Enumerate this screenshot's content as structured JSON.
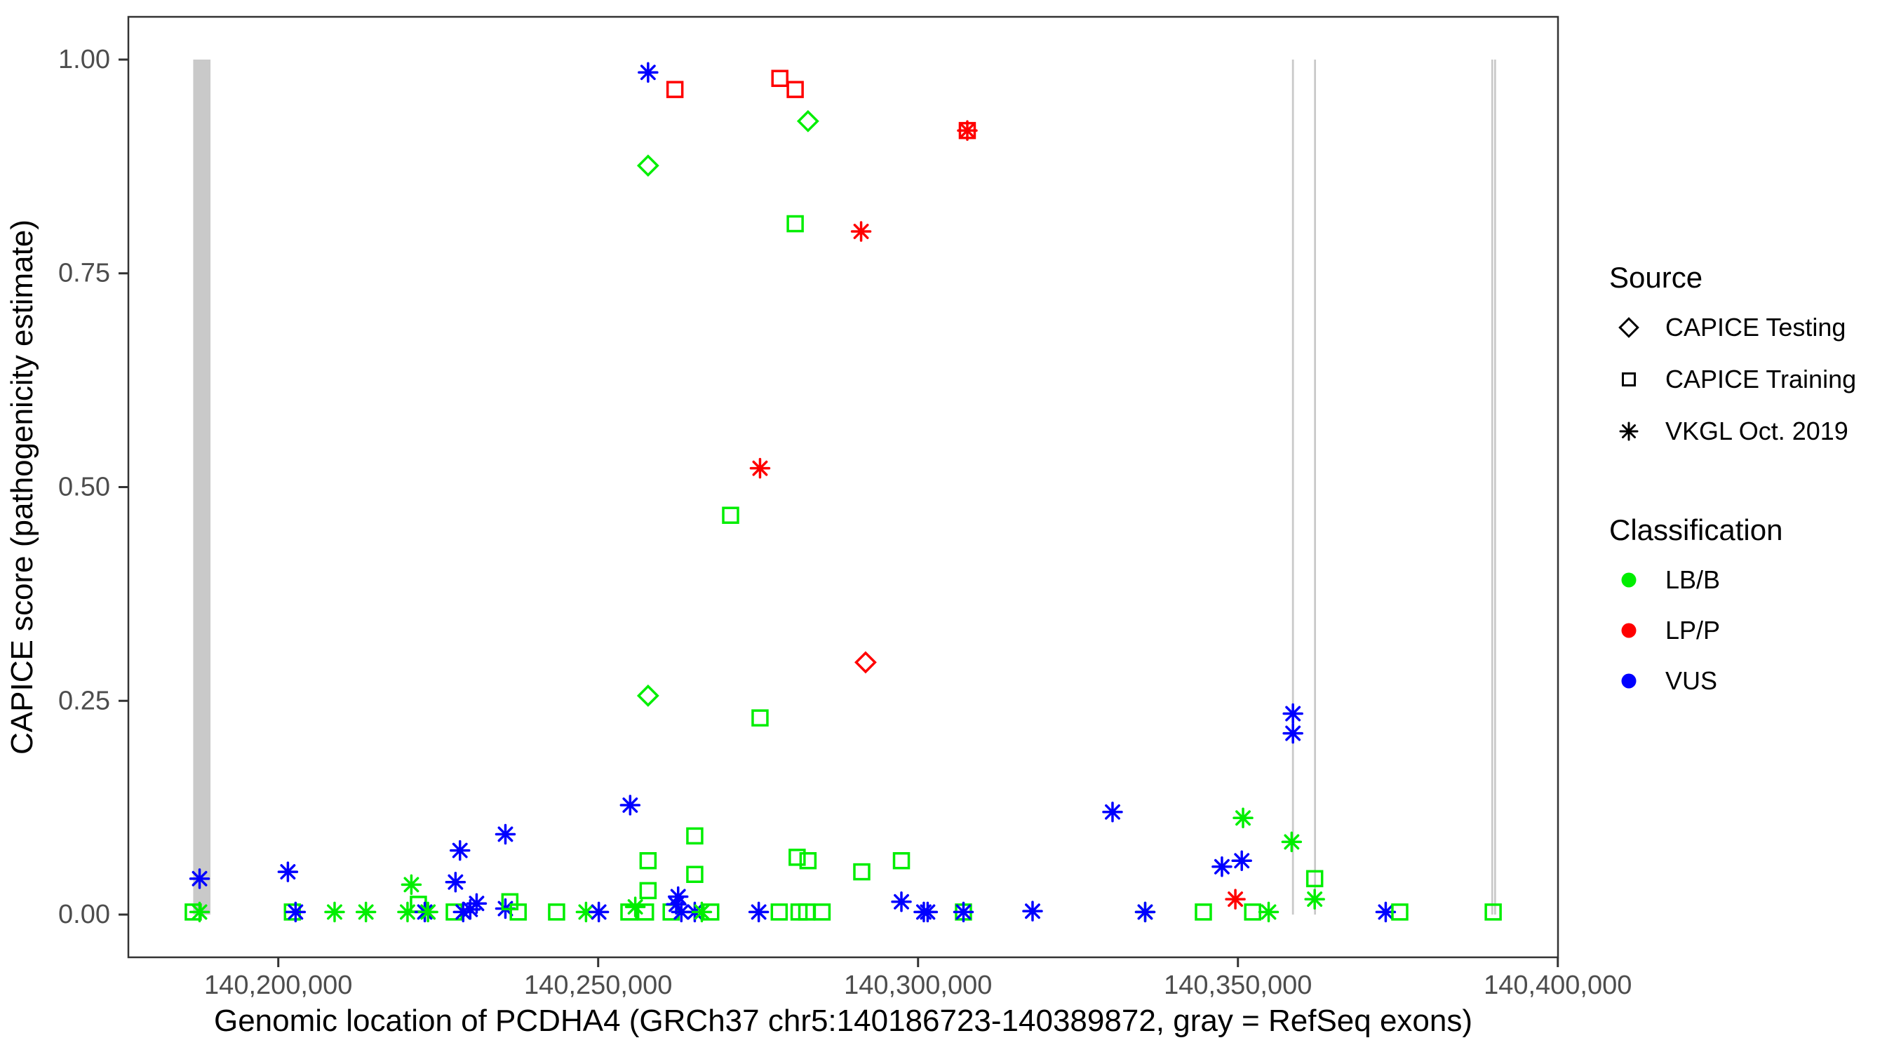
{
  "figure": {
    "xlabel": "Genomic location of PCDHA4 (GRCh37 chr5:140186723-140389872, gray = RefSeq exons)",
    "ylabel": "CAPICE score (pathogenicity estimate)"
  },
  "legend": {
    "source": {
      "title": "Source",
      "items": [
        {
          "label": "CAPICE Testing",
          "shape": "diamond"
        },
        {
          "label": "CAPICE Training",
          "shape": "square"
        },
        {
          "label": "VKGL Oct. 2019",
          "shape": "asterisk"
        }
      ]
    },
    "classification": {
      "title": "Classification",
      "items": [
        {
          "label": "LB/B",
          "color": "#00EE00"
        },
        {
          "label": "LP/P",
          "color": "#FF0000"
        },
        {
          "label": "VUS",
          "color": "#0000FF"
        }
      ]
    }
  },
  "chart_data": {
    "type": "scatter",
    "title": "",
    "xlabel": "Genomic location of PCDHA4 (GRCh37 chr5:140186723-140389872, gray = RefSeq exons)",
    "ylabel": "CAPICE score (pathogenicity estimate)",
    "xlim": [
      140176566,
      140400029
    ],
    "ylim": [
      -0.05,
      1.05
    ],
    "grid": false,
    "legend_position": "right",
    "x_ticks": [
      140200000,
      140250000,
      140300000,
      140350000,
      140400000
    ],
    "x_tick_labels": [
      "140,200,000",
      "140,250,000",
      "140,300,000",
      "140,350,000",
      "140,400,000"
    ],
    "y_ticks": [
      0,
      0.25,
      0.5,
      0.75,
      1.0
    ],
    "y_tick_labels": [
      "0.00",
      "0.25",
      "0.50",
      "0.75",
      "1.00"
    ],
    "exon_color": "#C9C9C9",
    "exons_bp": [
      [
        140186700,
        140189400
      ],
      [
        140358450,
        140358750
      ],
      [
        140361900,
        140362200
      ],
      [
        140389600,
        140389900
      ],
      [
        140390050,
        140390350
      ]
    ],
    "shapes_by_source": {
      "Testing": "diamond",
      "Training": "square",
      "VKGL": "asterisk"
    },
    "colors_by_classification": {
      "LB/B": "#00EE00",
      "LP/P": "#FF0000",
      "VUS": "#0000FF"
    },
    "points_format": [
      "position_bp",
      "capice_score",
      "source",
      "classification"
    ],
    "points": [
      [
        140257800,
        0.985,
        "VKGL",
        "VUS"
      ],
      [
        140262000,
        0.965,
        "Training",
        "LP/P"
      ],
      [
        140278400,
        0.978,
        "Training",
        "LP/P"
      ],
      [
        140280800,
        0.965,
        "Training",
        "LP/P"
      ],
      [
        140282800,
        0.928,
        "Testing",
        "LB/B"
      ],
      [
        140307700,
        0.917,
        "Training",
        "LP/P"
      ],
      [
        140307700,
        0.917,
        "VKGL",
        "LP/P"
      ],
      [
        140257800,
        0.876,
        "Testing",
        "LB/B"
      ],
      [
        140280800,
        0.808,
        "Training",
        "LB/B"
      ],
      [
        140291100,
        0.799,
        "VKGL",
        "LP/P"
      ],
      [
        140275300,
        0.522,
        "VKGL",
        "LP/P"
      ],
      [
        140270700,
        0.467,
        "Training",
        "LB/B"
      ],
      [
        140291800,
        0.295,
        "Testing",
        "LP/P"
      ],
      [
        140257800,
        0.256,
        "Testing",
        "LB/B"
      ],
      [
        140275300,
        0.23,
        "Training",
        "LB/B"
      ],
      [
        140358600,
        0.235,
        "VKGL",
        "VUS"
      ],
      [
        140358600,
        0.212,
        "VKGL",
        "VUS"
      ],
      [
        140187700,
        0.042,
        "VKGL",
        "VUS"
      ],
      [
        140186700,
        0.003,
        "Training",
        "LB/B"
      ],
      [
        140187700,
        0.003,
        "VKGL",
        "LB/B"
      ],
      [
        140201500,
        0.05,
        "VKGL",
        "VUS"
      ],
      [
        140202200,
        0.003,
        "Training",
        "LB/B"
      ],
      [
        140202700,
        0.003,
        "VKGL",
        "VUS"
      ],
      [
        140208800,
        0.003,
        "VKGL",
        "LB/B"
      ],
      [
        140213700,
        0.003,
        "VKGL",
        "LB/B"
      ],
      [
        140220800,
        0.035,
        "VKGL",
        "LB/B"
      ],
      [
        140220200,
        0.003,
        "VKGL",
        "LB/B"
      ],
      [
        140221900,
        0.012,
        "Training",
        "LB/B"
      ],
      [
        140222900,
        0.003,
        "VKGL",
        "VUS"
      ],
      [
        140223400,
        0.003,
        "VKGL",
        "LB/B"
      ],
      [
        140228400,
        0.075,
        "VKGL",
        "VUS"
      ],
      [
        140227700,
        0.038,
        "VKGL",
        "VUS"
      ],
      [
        140227500,
        0.003,
        "Training",
        "LB/B"
      ],
      [
        140228900,
        0.003,
        "VKGL",
        "VUS"
      ],
      [
        140230000,
        0.006,
        "VKGL",
        "VUS"
      ],
      [
        140231000,
        0.013,
        "VKGL",
        "VUS"
      ],
      [
        140235500,
        0.094,
        "VKGL",
        "VUS"
      ],
      [
        140235500,
        0.007,
        "VKGL",
        "VUS"
      ],
      [
        140236200,
        0.015,
        "Training",
        "LB/B"
      ],
      [
        140237500,
        0.003,
        "Training",
        "LB/B"
      ],
      [
        140243500,
        0.003,
        "Training",
        "LB/B"
      ],
      [
        140248100,
        0.003,
        "VKGL",
        "LB/B"
      ],
      [
        140250100,
        0.003,
        "VKGL",
        "VUS"
      ],
      [
        140255000,
        0.128,
        "VKGL",
        "VUS"
      ],
      [
        140254800,
        0.003,
        "Training",
        "LB/B"
      ],
      [
        140255800,
        0.009,
        "VKGL",
        "LB/B"
      ],
      [
        140257400,
        0.003,
        "Training",
        "LB/B"
      ],
      [
        140257800,
        0.063,
        "Training",
        "LB/B"
      ],
      [
        140257800,
        0.028,
        "Training",
        "LB/B"
      ],
      [
        140265100,
        0.092,
        "Training",
        "LB/B"
      ],
      [
        140265100,
        0.047,
        "Training",
        "LB/B"
      ],
      [
        140261400,
        0.003,
        "Training",
        "LB/B"
      ],
      [
        140262200,
        0.012,
        "VKGL",
        "VUS"
      ],
      [
        140262500,
        0.021,
        "VKGL",
        "VUS"
      ],
      [
        140263000,
        0.003,
        "VKGL",
        "VUS"
      ],
      [
        140265100,
        0.003,
        "VKGL",
        "VUS"
      ],
      [
        140266200,
        0.003,
        "VKGL",
        "LB/B"
      ],
      [
        140267600,
        0.003,
        "Training",
        "LB/B"
      ],
      [
        140275100,
        0.003,
        "VKGL",
        "VUS"
      ],
      [
        140281100,
        0.067,
        "Training",
        "LB/B"
      ],
      [
        140282800,
        0.063,
        "Training",
        "LB/B"
      ],
      [
        140291200,
        0.05,
        "Training",
        "LB/B"
      ],
      [
        140297400,
        0.063,
        "Training",
        "LB/B"
      ],
      [
        140278300,
        0.003,
        "Training",
        "LB/B"
      ],
      [
        140281400,
        0.003,
        "Training",
        "LB/B"
      ],
      [
        140282600,
        0.003,
        "Training",
        "LB/B"
      ],
      [
        140285000,
        0.003,
        "Training",
        "LB/B"
      ],
      [
        140297400,
        0.015,
        "VKGL",
        "VUS"
      ],
      [
        140300900,
        0.003,
        "VKGL",
        "VUS"
      ],
      [
        140301500,
        0.003,
        "VKGL",
        "VUS"
      ],
      [
        140307100,
        0.003,
        "Training",
        "LB/B"
      ],
      [
        140307100,
        0.003,
        "VKGL",
        "VUS"
      ],
      [
        140317900,
        0.004,
        "VKGL",
        "VUS"
      ],
      [
        140330400,
        0.12,
        "VKGL",
        "VUS"
      ],
      [
        140350800,
        0.113,
        "VKGL",
        "LB/B"
      ],
      [
        140358400,
        0.085,
        "VKGL",
        "LB/B"
      ],
      [
        140347500,
        0.056,
        "VKGL",
        "VUS"
      ],
      [
        140350600,
        0.063,
        "VKGL",
        "VUS"
      ],
      [
        140362000,
        0.042,
        "Training",
        "LB/B"
      ],
      [
        140362000,
        0.018,
        "VKGL",
        "LB/B"
      ],
      [
        140349600,
        0.018,
        "VKGL",
        "LP/P"
      ],
      [
        140335500,
        0.003,
        "VKGL",
        "LB/B"
      ],
      [
        140335500,
        0.003,
        "VKGL",
        "VUS"
      ],
      [
        140344600,
        0.003,
        "Training",
        "LB/B"
      ],
      [
        140352300,
        0.003,
        "Training",
        "LB/B"
      ],
      [
        140354800,
        0.003,
        "VKGL",
        "LB/B"
      ],
      [
        140373100,
        0.003,
        "VKGL",
        "VUS"
      ],
      [
        140375300,
        0.003,
        "Training",
        "LB/B"
      ],
      [
        140389900,
        0.003,
        "Training",
        "LB/B"
      ]
    ]
  }
}
